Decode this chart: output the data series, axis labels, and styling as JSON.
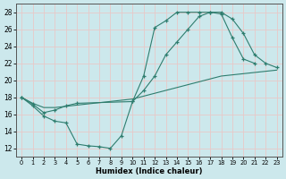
{
  "xlabel": "Humidex (Indice chaleur)",
  "xlim": [
    -0.5,
    23.5
  ],
  "ylim": [
    11,
    29
  ],
  "yticks": [
    12,
    14,
    16,
    18,
    20,
    22,
    24,
    26,
    28
  ],
  "xticks": [
    0,
    1,
    2,
    3,
    4,
    5,
    6,
    7,
    8,
    9,
    10,
    11,
    12,
    13,
    14,
    15,
    16,
    17,
    18,
    19,
    20,
    21,
    22,
    23
  ],
  "bg_color": "#cce8ec",
  "line_color": "#2e7d6e",
  "grid_color": "#e8c8c8",
  "curve1": {
    "x": [
      0,
      1,
      2,
      3,
      4,
      5,
      6,
      7,
      8,
      9,
      10,
      11,
      12,
      13,
      14,
      15,
      16,
      17,
      18,
      19,
      20,
      21
    ],
    "y": [
      18.0,
      17.0,
      15.8,
      15.2,
      15.0,
      12.5,
      12.3,
      12.2,
      12.0,
      13.5,
      17.5,
      20.5,
      26.2,
      27.0,
      28.0,
      28.0,
      28.0,
      28.0,
      27.8,
      25.0,
      22.5,
      22.0
    ]
  },
  "curve2": {
    "x": [
      0,
      1,
      2,
      3,
      4,
      5,
      10,
      11,
      12,
      13,
      14,
      15,
      16,
      17,
      18,
      19,
      20,
      21,
      22,
      23
    ],
    "y": [
      18.0,
      17.2,
      16.2,
      16.5,
      17.0,
      17.3,
      17.5,
      18.8,
      20.5,
      23.0,
      24.5,
      26.0,
      27.5,
      28.0,
      28.0,
      27.2,
      25.5,
      23.0,
      22.0,
      21.5
    ]
  },
  "curve3": {
    "x": [
      0,
      1,
      2,
      3,
      10,
      18,
      23
    ],
    "y": [
      18.0,
      17.3,
      16.8,
      16.8,
      17.8,
      20.5,
      21.2
    ]
  }
}
